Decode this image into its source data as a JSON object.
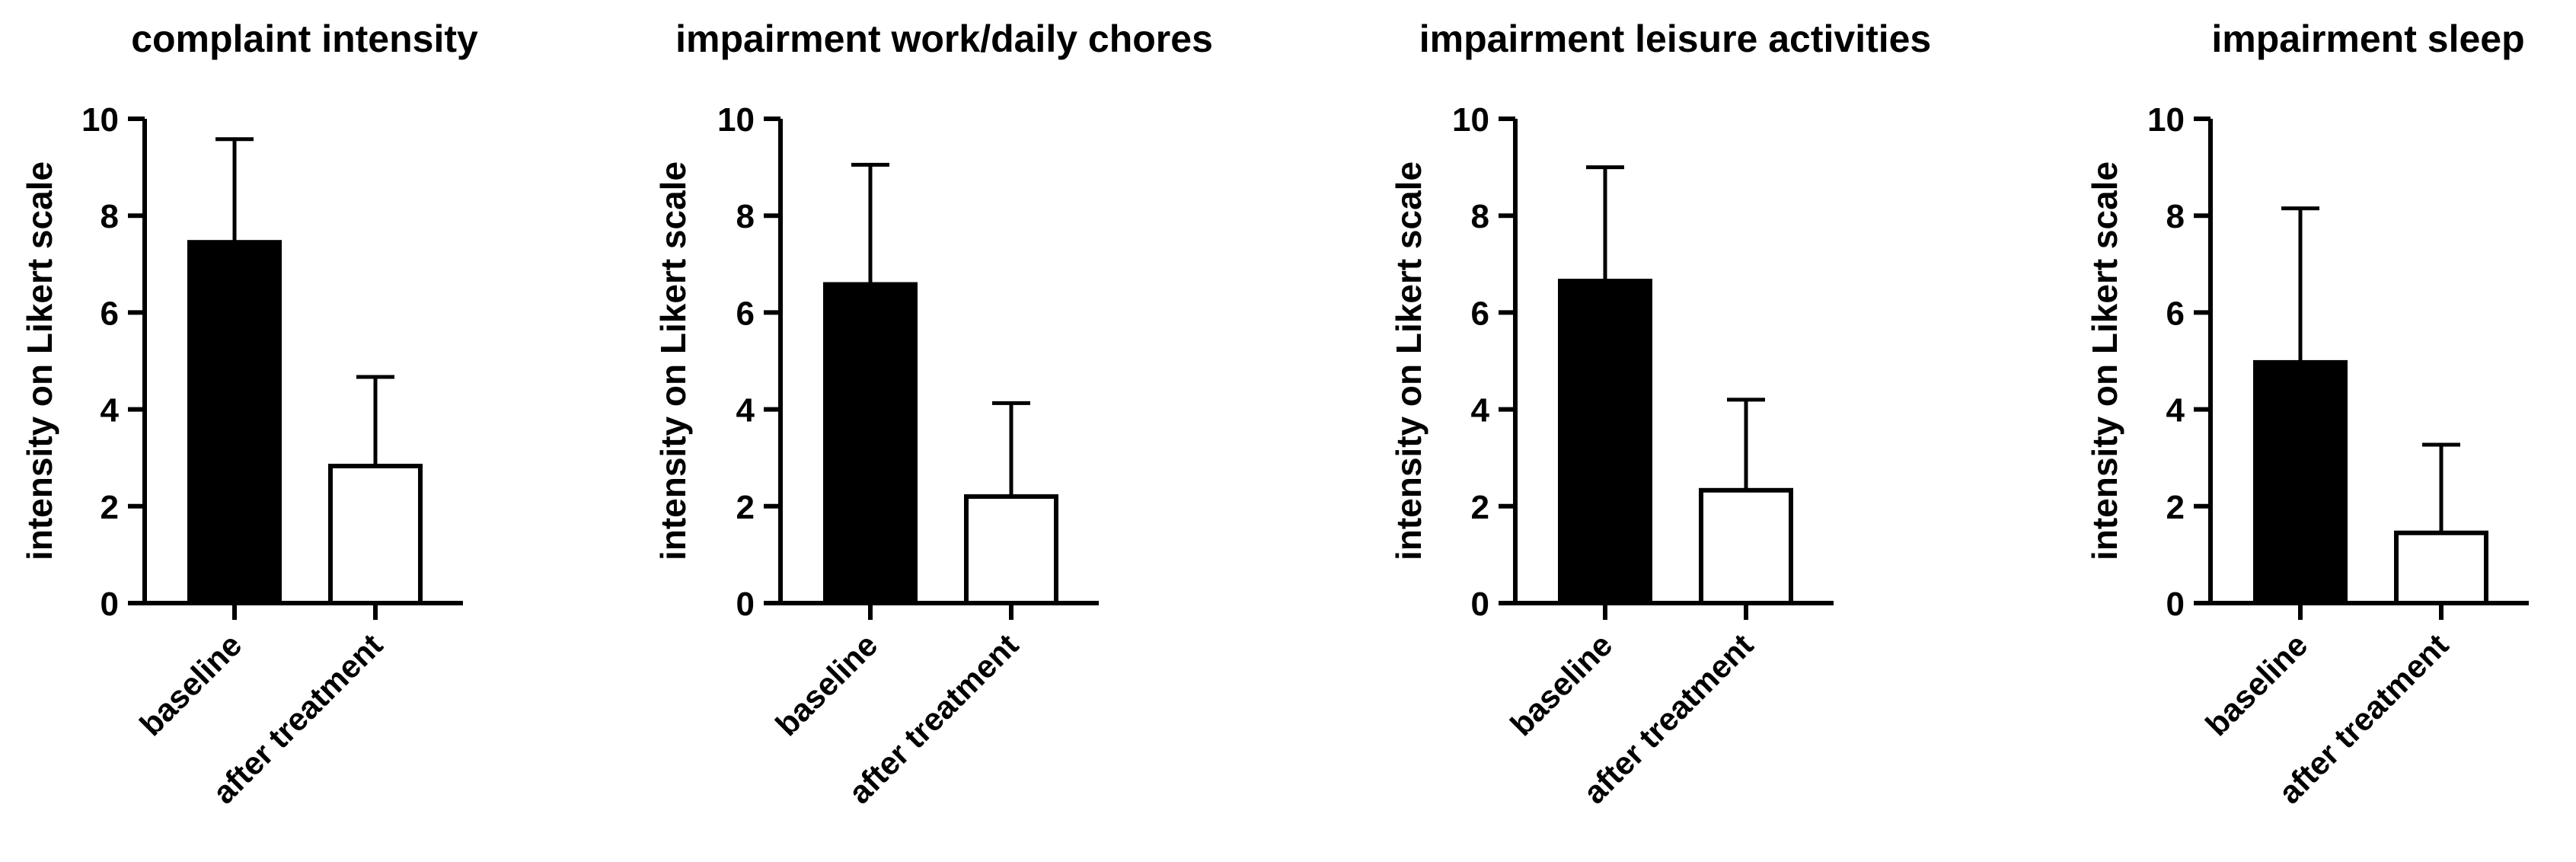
{
  "chart_data": [
    {
      "type": "bar",
      "title": "complaint intensity",
      "ylabel": "intensity on Likert scale",
      "categories": [
        "baseline",
        "after treatment"
      ],
      "values": [
        7.45,
        2.83
      ],
      "error_upper": [
        9.58,
        4.67
      ],
      "bar_fill": [
        "#000000",
        "#ffffff"
      ],
      "ylim": [
        0,
        10
      ],
      "yticks": [
        "0",
        "2",
        "4",
        "6",
        "8",
        "10"
      ],
      "grid": false,
      "legend": "none"
    },
    {
      "type": "bar",
      "title": "impairment work/daily chores",
      "ylabel": "intensity on Likert scale",
      "categories": [
        "baseline",
        "after treatment"
      ],
      "values": [
        6.58,
        2.2
      ],
      "error_upper": [
        9.05,
        4.13
      ],
      "bar_fill": [
        "#000000",
        "#ffffff"
      ],
      "ylim": [
        0,
        10
      ],
      "yticks": [
        "0",
        "2",
        "4",
        "6",
        "8",
        "10"
      ],
      "grid": false,
      "legend": "none"
    },
    {
      "type": "bar",
      "title": "impairment leisure activities",
      "ylabel": "intensity on Likert scale",
      "categories": [
        "baseline",
        "after treatment"
      ],
      "values": [
        6.65,
        2.33
      ],
      "error_upper": [
        9.0,
        4.2
      ],
      "bar_fill": [
        "#000000",
        "#ffffff"
      ],
      "ylim": [
        0,
        10
      ],
      "yticks": [
        "0",
        "2",
        "4",
        "6",
        "8",
        "10"
      ],
      "grid": false,
      "legend": "none"
    },
    {
      "type": "bar",
      "title": "impairment sleep",
      "ylabel": "intensity on Likert scale",
      "categories": [
        "baseline",
        "after treatment"
      ],
      "values": [
        4.97,
        1.45
      ],
      "error_upper": [
        8.15,
        3.27
      ],
      "bar_fill": [
        "#000000",
        "#ffffff"
      ],
      "ylim": [
        0,
        10
      ],
      "yticks": [
        "0",
        "2",
        "4",
        "6",
        "8",
        "10"
      ],
      "grid": false,
      "legend": "none"
    }
  ]
}
